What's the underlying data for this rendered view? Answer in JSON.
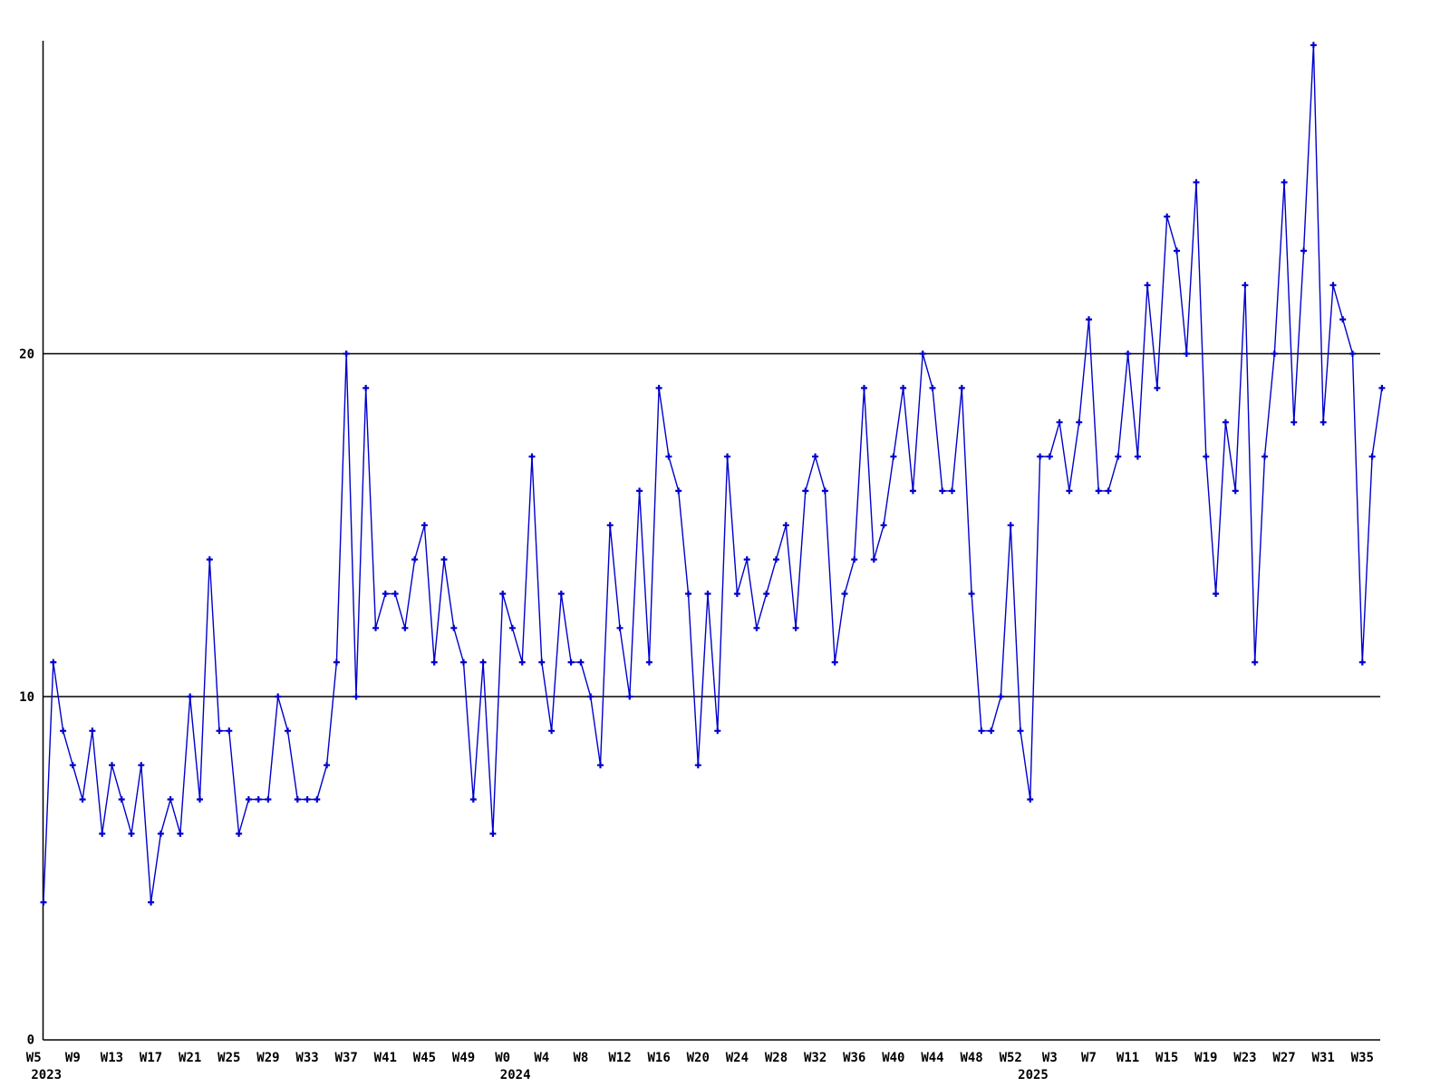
{
  "chart_data": {
    "type": "line",
    "title": "",
    "xlabel": "",
    "ylabel": "",
    "legend": "none",
    "grid": "horizontal lines at y=10 and y=20",
    "background": "#ffffff",
    "axis_color": "#000000",
    "y_ticks": [
      "0",
      "10",
      "20"
    ],
    "ylim": [
      0,
      29.6
    ],
    "marker": "plus",
    "series": [
      {
        "name": "weekly-values",
        "color": "#0000cc",
        "segments": [
          {
            "year": 2023,
            "start_week": 6,
            "values": [
              4,
              11,
              9,
              8,
              7,
              9,
              6,
              8,
              7,
              6,
              8,
              4,
              6,
              7,
              6,
              10,
              7,
              14,
              9,
              9,
              6,
              7,
              7,
              7,
              10,
              9,
              7,
              7,
              7,
              8,
              11,
              20,
              10,
              19,
              12,
              13,
              13,
              12,
              14,
              15,
              11,
              14,
              12,
              11,
              7,
              11,
              6
            ]
          },
          {
            "year": 2024,
            "start_week": 0,
            "values": [
              13,
              12,
              11,
              17,
              11,
              9,
              13,
              11,
              11,
              10,
              8,
              15,
              12,
              10,
              16,
              11,
              19,
              17,
              16,
              13,
              8,
              13,
              9,
              17,
              13,
              14,
              12,
              13,
              14,
              15,
              12,
              16,
              17,
              16,
              11,
              13,
              14,
              19,
              14,
              15,
              17,
              19,
              16,
              20,
              19,
              16,
              16,
              19,
              13,
              9,
              9,
              10,
              15
            ]
          },
          {
            "year": 2025,
            "start_week": 0,
            "values": [
              9,
              7,
              17,
              17,
              18,
              16,
              18,
              21,
              16,
              16,
              17,
              20,
              17,
              22,
              19,
              24,
              23,
              20,
              25,
              17,
              13,
              18,
              16,
              22,
              11,
              17,
              20,
              25,
              18,
              23,
              29,
              18,
              22,
              21,
              20,
              11,
              17,
              19
            ]
          }
        ]
      }
    ],
    "x_ticks": [
      {
        "label": "W5",
        "index": -1
      },
      {
        "label": "W9",
        "index": 3
      },
      {
        "label": "W13",
        "index": 7
      },
      {
        "label": "W17",
        "index": 11
      },
      {
        "label": "W21",
        "index": 15
      },
      {
        "label": "W25",
        "index": 19
      },
      {
        "label": "W29",
        "index": 23
      },
      {
        "label": "W33",
        "index": 27
      },
      {
        "label": "W37",
        "index": 31
      },
      {
        "label": "W41",
        "index": 35
      },
      {
        "label": "W45",
        "index": 39
      },
      {
        "label": "W49",
        "index": 43
      },
      {
        "label": "W0",
        "index": 47
      },
      {
        "label": "W4",
        "index": 51
      },
      {
        "label": "W8",
        "index": 55
      },
      {
        "label": "W12",
        "index": 59
      },
      {
        "label": "W16",
        "index": 63
      },
      {
        "label": "W20",
        "index": 67
      },
      {
        "label": "W24",
        "index": 71
      },
      {
        "label": "W28",
        "index": 75
      },
      {
        "label": "W32",
        "index": 79
      },
      {
        "label": "W36",
        "index": 83
      },
      {
        "label": "W40",
        "index": 87
      },
      {
        "label": "W44",
        "index": 91
      },
      {
        "label": "W48",
        "index": 95
      },
      {
        "label": "W52",
        "index": 99
      },
      {
        "label": "W3",
        "index": 103
      },
      {
        "label": "W7",
        "index": 107
      },
      {
        "label": "W11",
        "index": 111
      },
      {
        "label": "W15",
        "index": 115
      },
      {
        "label": "W19",
        "index": 119
      },
      {
        "label": "W23",
        "index": 123
      },
      {
        "label": "W27",
        "index": 127
      },
      {
        "label": "W31",
        "index": 131
      },
      {
        "label": "W35",
        "index": 135
      }
    ],
    "year_labels": [
      {
        "label": "2023",
        "index": -1
      },
      {
        "label": "2024",
        "index": 47
      },
      {
        "label": "2025",
        "index": 100
      }
    ]
  }
}
